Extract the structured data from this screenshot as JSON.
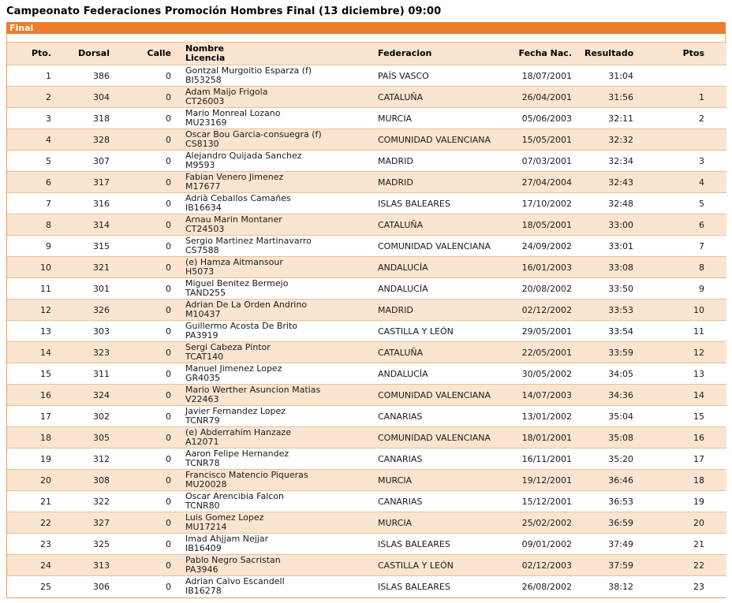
{
  "page": {
    "title": "Campeonato Federaciones Promoción Hombres Final (13 diciembre) 09:00",
    "section_label": "Final"
  },
  "colors": {
    "accent_orange": "#ED7D2B",
    "row_peach": "#FBE5D0",
    "row_border": "#F1BD92",
    "outer_border": "#EA9C5D"
  },
  "table": {
    "headers": {
      "pto": "Pto.",
      "dorsal": "Dorsal",
      "calle": "Calle",
      "nombre": "Nombre",
      "licencia": "Licencia",
      "federacion": "Federacion",
      "fecha_nac": "Fecha Nac.",
      "resultado": "Resultado",
      "ptos": "Ptos"
    },
    "rows": [
      {
        "pto": "1",
        "dorsal": "386",
        "calle": "0",
        "nombre": "Gontzal Murgoitio Esparza (f)",
        "licencia": "BI53258",
        "federacion": "PAÍS VASCO",
        "fecha_nac": "18/07/2001",
        "resultado": "31:04",
        "ptos": ""
      },
      {
        "pto": "2",
        "dorsal": "304",
        "calle": "0",
        "nombre": "Adam Maijo Frigola",
        "licencia": "CT26003",
        "federacion": "CATALUÑA",
        "fecha_nac": "26/04/2001",
        "resultado": "31:56",
        "ptos": "1"
      },
      {
        "pto": "3",
        "dorsal": "318",
        "calle": "0",
        "nombre": "Mario Monreal Lozano",
        "licencia": "MU23169",
        "federacion": "MURCIA",
        "fecha_nac": "05/06/2003",
        "resultado": "32:11",
        "ptos": "2"
      },
      {
        "pto": "4",
        "dorsal": "328",
        "calle": "0",
        "nombre": "Oscar Bou Garcia-consuegra (f)",
        "licencia": "CS8130",
        "federacion": "COMUNIDAD VALENCIANA",
        "fecha_nac": "15/05/2001",
        "resultado": "32:32",
        "ptos": ""
      },
      {
        "pto": "5",
        "dorsal": "307",
        "calle": "0",
        "nombre": "Alejandro Quijada Sanchez",
        "licencia": "M9593",
        "federacion": "MADRID",
        "fecha_nac": "07/03/2001",
        "resultado": "32:34",
        "ptos": "3"
      },
      {
        "pto": "6",
        "dorsal": "317",
        "calle": "0",
        "nombre": "Fabian Venero Jimenez",
        "licencia": "M17677",
        "federacion": "MADRID",
        "fecha_nac": "27/04/2004",
        "resultado": "32:43",
        "ptos": "4"
      },
      {
        "pto": "7",
        "dorsal": "316",
        "calle": "0",
        "nombre": "Adrià Ceballos Camañes",
        "licencia": "IB16634",
        "federacion": "ISLAS BALEARES",
        "fecha_nac": "17/10/2002",
        "resultado": "32:48",
        "ptos": "5"
      },
      {
        "pto": "8",
        "dorsal": "314",
        "calle": "0",
        "nombre": "Arnau Marin Montaner",
        "licencia": "CT24503",
        "federacion": "CATALUÑA",
        "fecha_nac": "18/05/2001",
        "resultado": "33:00",
        "ptos": "6"
      },
      {
        "pto": "9",
        "dorsal": "315",
        "calle": "0",
        "nombre": "Sergio Martinez Martinavarro",
        "licencia": "CS7588",
        "federacion": "COMUNIDAD VALENCIANA",
        "fecha_nac": "24/09/2002",
        "resultado": "33:01",
        "ptos": "7"
      },
      {
        "pto": "10",
        "dorsal": "321",
        "calle": "0",
        "nombre": "(e) Hamza Aitmansour",
        "licencia": "H5073",
        "federacion": "ANDALUCÍA",
        "fecha_nac": "16/01/2003",
        "resultado": "33:08",
        "ptos": "8"
      },
      {
        "pto": "11",
        "dorsal": "301",
        "calle": "0",
        "nombre": "Miguel Benitez Bermejo",
        "licencia": "TAND255",
        "federacion": "ANDALUCÍA",
        "fecha_nac": "20/08/2002",
        "resultado": "33:50",
        "ptos": "9"
      },
      {
        "pto": "12",
        "dorsal": "326",
        "calle": "0",
        "nombre": "Adrian De La Orden Andrino",
        "licencia": "M10437",
        "federacion": "MADRID",
        "fecha_nac": "02/12/2002",
        "resultado": "33:53",
        "ptos": "10"
      },
      {
        "pto": "13",
        "dorsal": "303",
        "calle": "0",
        "nombre": "Guillermo Acosta De Brito",
        "licencia": "PA3919",
        "federacion": "CASTILLA Y LEÓN",
        "fecha_nac": "29/05/2001",
        "resultado": "33:54",
        "ptos": "11"
      },
      {
        "pto": "14",
        "dorsal": "323",
        "calle": "0",
        "nombre": "Sergi Cabeza Pintor",
        "licencia": "TCAT140",
        "federacion": "CATALUÑA",
        "fecha_nac": "22/05/2001",
        "resultado": "33:59",
        "ptos": "12"
      },
      {
        "pto": "15",
        "dorsal": "311",
        "calle": "0",
        "nombre": "Manuel Jimenez Lopez",
        "licencia": "GR4035",
        "federacion": "ANDALUCÍA",
        "fecha_nac": "30/05/2002",
        "resultado": "34:05",
        "ptos": "13"
      },
      {
        "pto": "16",
        "dorsal": "324",
        "calle": "0",
        "nombre": "Mario Werther Asuncion Matias",
        "licencia": "V22463",
        "federacion": "COMUNIDAD VALENCIANA",
        "fecha_nac": "14/07/2003",
        "resultado": "34:36",
        "ptos": "14"
      },
      {
        "pto": "17",
        "dorsal": "302",
        "calle": "0",
        "nombre": "Javier Fernandez Lopez",
        "licencia": "TCNR79",
        "federacion": "CANARIAS",
        "fecha_nac": "13/01/2002",
        "resultado": "35:04",
        "ptos": "15"
      },
      {
        "pto": "18",
        "dorsal": "305",
        "calle": "0",
        "nombre": "(e) Abderrahim Hanzaze",
        "licencia": "A12071",
        "federacion": "COMUNIDAD VALENCIANA",
        "fecha_nac": "18/01/2001",
        "resultado": "35:08",
        "ptos": "16"
      },
      {
        "pto": "19",
        "dorsal": "312",
        "calle": "0",
        "nombre": "Aaron Felipe Hernandez",
        "licencia": "TCNR78",
        "federacion": "CANARIAS",
        "fecha_nac": "16/11/2001",
        "resultado": "35:20",
        "ptos": "17"
      },
      {
        "pto": "20",
        "dorsal": "308",
        "calle": "0",
        "nombre": "Francisco Matencio Piqueras",
        "licencia": "MU20028",
        "federacion": "MURCIA",
        "fecha_nac": "19/12/2001",
        "resultado": "36:46",
        "ptos": "18"
      },
      {
        "pto": "21",
        "dorsal": "322",
        "calle": "0",
        "nombre": "Oscar Arencibia Falcon",
        "licencia": "TCNR80",
        "federacion": "CANARIAS",
        "fecha_nac": "15/12/2001",
        "resultado": "36:53",
        "ptos": "19"
      },
      {
        "pto": "22",
        "dorsal": "327",
        "calle": "0",
        "nombre": "Luis Gomez Lopez",
        "licencia": "MU17214",
        "federacion": "MURCIA",
        "fecha_nac": "25/02/2002",
        "resultado": "36:59",
        "ptos": "20"
      },
      {
        "pto": "23",
        "dorsal": "325",
        "calle": "0",
        "nombre": "Imad Ahjjam Nejjar",
        "licencia": "IB16409",
        "federacion": "ISLAS BALEARES",
        "fecha_nac": "09/01/2002",
        "resultado": "37:49",
        "ptos": "21"
      },
      {
        "pto": "24",
        "dorsal": "313",
        "calle": "0",
        "nombre": "Pablo Negro Sacristan",
        "licencia": "PA3946",
        "federacion": "CASTILLA Y LEÓN",
        "fecha_nac": "02/12/2003",
        "resultado": "37:59",
        "ptos": "22"
      },
      {
        "pto": "25",
        "dorsal": "306",
        "calle": "0",
        "nombre": "Adrian Calvo Escandell",
        "licencia": "IB16278",
        "federacion": "ISLAS BALEARES",
        "fecha_nac": "26/08/2002",
        "resultado": "38:12",
        "ptos": "23"
      }
    ]
  }
}
